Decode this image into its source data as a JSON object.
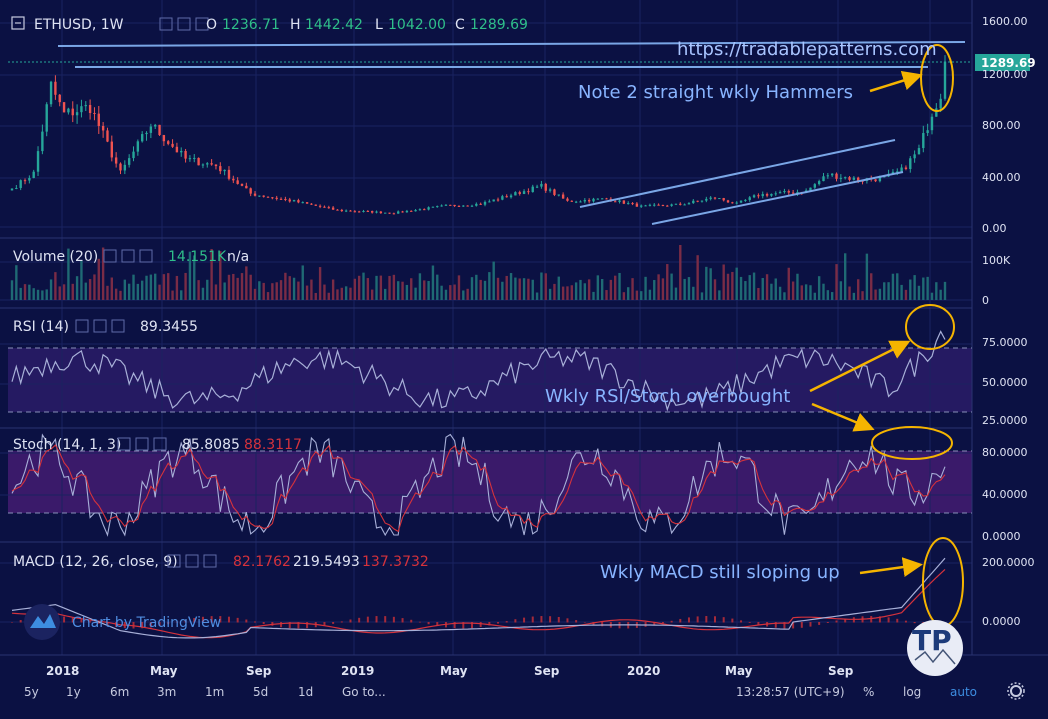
{
  "header": {
    "symbol": "ETHUSD, 1W",
    "o_label": "O",
    "o_value": "1236.71",
    "h_label": "H",
    "h_value": "1442.42",
    "l_label": "L",
    "l_value": "1042.00",
    "c_label": "C",
    "c_value": "1289.69",
    "watermark_url": "https://tradablepatterns.com"
  },
  "price_badge": "1289.69",
  "panels": {
    "volume": {
      "label": "Volume (20)",
      "value1": "14.151K",
      "value2": "n/a"
    },
    "rsi": {
      "label": "RSI (14)",
      "value1": "89.3455"
    },
    "stoch": {
      "label": "Stoch (14, 1, 3)",
      "value1": "85.8085",
      "value2": "88.3117"
    },
    "macd": {
      "label": "MACD (12, 26, close, 9)",
      "value1": "82.1762",
      "value2": "219.5493",
      "value3": "137.3732"
    }
  },
  "annotations": {
    "hammers": "Note 2 straight wkly Hammers",
    "overbought": "Wkly RSI/Stoch overbought",
    "macd": "Wkly MACD still sloping up"
  },
  "branding": {
    "chart_by": "Chart by TradingView"
  },
  "bottom_bar": {
    "ranges": [
      "5y",
      "1y",
      "6m",
      "3m",
      "1m",
      "5d",
      "1d"
    ],
    "goto": "Go to...",
    "time": "13:28:57 (UTC+9)",
    "percent": "%",
    "log": "log",
    "auto": "auto"
  },
  "colors": {
    "background": "#0b1143",
    "up": "#26a69a",
    "down": "#ef5350",
    "trendline": "#7aa6e6",
    "annotation": "#88b4ff",
    "arrow": "#f5b400",
    "oscillator_line": "#a8b0d8",
    "signal_line": "#d4323c"
  },
  "chart_data": [
    {
      "type": "candlestick",
      "title": "ETHUSD, 1W",
      "x_ticks": [
        "2018",
        "May",
        "Sep",
        "2019",
        "May",
        "Sep",
        "2020",
        "May",
        "Sep"
      ],
      "y_ticks": [
        "1600.00",
        "1200.00",
        "800.00",
        "400.00",
        "0.00"
      ],
      "ylim": [
        0,
        1600
      ],
      "close_anchors": [
        [
          0,
          300
        ],
        [
          5,
          420
        ],
        [
          9,
          1100
        ],
        [
          12,
          880
        ],
        [
          18,
          940
        ],
        [
          25,
          420
        ],
        [
          32,
          800
        ],
        [
          40,
          530
        ],
        [
          47,
          480
        ],
        [
          55,
          260
        ],
        [
          65,
          200
        ],
        [
          75,
          130
        ],
        [
          88,
          110
        ],
        [
          100,
          165
        ],
        [
          108,
          180
        ],
        [
          112,
          220
        ],
        [
          122,
          320
        ],
        [
          128,
          200
        ],
        [
          137,
          220
        ],
        [
          145,
          160
        ],
        [
          154,
          175
        ],
        [
          162,
          230
        ],
        [
          167,
          180
        ],
        [
          172,
          250
        ],
        [
          183,
          280
        ],
        [
          188,
          410
        ],
        [
          195,
          370
        ],
        [
          201,
          380
        ],
        [
          205,
          440
        ],
        [
          209,
          600
        ],
        [
          212,
          900
        ],
        [
          214,
          1050
        ],
        [
          215,
          1290
        ]
      ]
    },
    {
      "type": "bar",
      "title": "Volume (20)",
      "y_ticks": [
        "100K",
        "0"
      ]
    },
    {
      "type": "line",
      "title": "RSI (14)",
      "y_ticks": [
        "75.0000",
        "50.0000",
        "25.0000"
      ],
      "levels": [
        70,
        30
      ],
      "ylim": [
        25,
        95
      ]
    },
    {
      "type": "line",
      "title": "Stoch (14, 1, 3)",
      "y_ticks": [
        "80.0000",
        "40.0000",
        "0.0000"
      ],
      "levels": [
        80,
        20
      ],
      "ylim": [
        0,
        100
      ]
    },
    {
      "type": "line",
      "title": "MACD (12, 26, close, 9)",
      "y_ticks": [
        "200.0000",
        "0.0000"
      ],
      "ylim": [
        -80,
        240
      ]
    }
  ]
}
